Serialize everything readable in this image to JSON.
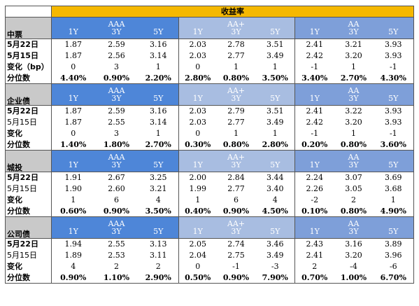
{
  "title": "收益率",
  "groups": [
    "AAA",
    "AA+",
    "AA"
  ],
  "tenors": [
    "1Y",
    "3Y",
    "5Y"
  ],
  "sections": [
    {
      "name": "中票",
      "rows": [
        {
          "label": "5月22日",
          "bold_label": true,
          "bold_values": false,
          "values": [
            "1.87",
            "2.59",
            "3.16",
            "2.03",
            "2.78",
            "3.51",
            "2.41",
            "3.21",
            "3.93"
          ]
        },
        {
          "label": "5月15日",
          "bold_label": true,
          "bold_values": false,
          "values": [
            "1.87",
            "2.56",
            "3.14",
            "2.03",
            "2.77",
            "3.49",
            "2.42",
            "3.20",
            "3.93"
          ]
        },
        {
          "label": "变化（bp）",
          "bold_label": true,
          "bold_values": false,
          "values": [
            "0",
            "3",
            "1",
            "0",
            "1",
            "1",
            "-1",
            "1",
            "-1"
          ]
        },
        {
          "label": "分位数",
          "bold_label": true,
          "bold_values": true,
          "values": [
            "4.40%",
            "0.90%",
            "2.20%",
            "2.80%",
            "0.80%",
            "3.50%",
            "3.40%",
            "2.70%",
            "4.30%"
          ]
        }
      ]
    },
    {
      "name": "企业债",
      "rows": [
        {
          "label": "5月22日",
          "bold_label": true,
          "bold_values": false,
          "values": [
            "1.87",
            "2.59",
            "3.16",
            "2.03",
            "2.79",
            "3.51",
            "2.41",
            "3.22",
            "3.93"
          ]
        },
        {
          "label": "5月15日",
          "bold_label": false,
          "bold_values": false,
          "values": [
            "1.87",
            "2.55",
            "3.14",
            "2.03",
            "2.77",
            "3.49",
            "2.42",
            "3.20",
            "3.93"
          ]
        },
        {
          "label": "变化",
          "bold_label": true,
          "bold_values": false,
          "values": [
            "0",
            "3",
            "1",
            "0",
            "1",
            "1",
            "-1",
            "1",
            "-1"
          ]
        },
        {
          "label": "分位数",
          "bold_label": true,
          "bold_values": true,
          "values": [
            "1.40%",
            "1.80%",
            "2.70%",
            "0.30%",
            "0.80%",
            "2.80%",
            "0.20%",
            "0.80%",
            "3.60%"
          ]
        }
      ]
    },
    {
      "name": "城投",
      "rows": [
        {
          "label": "5月22日",
          "bold_label": true,
          "bold_values": false,
          "values": [
            "1.91",
            "2.67",
            "3.25",
            "2.00",
            "2.84",
            "3.44",
            "2.24",
            "3.07",
            "3.69"
          ]
        },
        {
          "label": "5月15日",
          "bold_label": false,
          "bold_values": false,
          "values": [
            "1.90",
            "2.60",
            "3.21",
            "1.99",
            "2.77",
            "3.40",
            "2.26",
            "3.05",
            "3.68"
          ]
        },
        {
          "label": "变化",
          "bold_label": true,
          "bold_values": false,
          "values": [
            "1",
            "6",
            "4",
            "1",
            "6",
            "4",
            "-2",
            "2",
            "1"
          ]
        },
        {
          "label": "分位数",
          "bold_label": true,
          "bold_values": true,
          "values": [
            "0.60%",
            "0.90%",
            "3.50%",
            "0.40%",
            "0.90%",
            "4.50%",
            "0.10%",
            "0.80%",
            "4.90%"
          ]
        }
      ]
    },
    {
      "name": "公司债",
      "rows": [
        {
          "label": "5月22日",
          "bold_label": true,
          "bold_values": false,
          "values": [
            "1.94",
            "2.55",
            "3.13",
            "2.05",
            "2.74",
            "3.46",
            "2.43",
            "3.16",
            "3.89"
          ]
        },
        {
          "label": "5月15日",
          "bold_label": false,
          "bold_values": false,
          "values": [
            "1.89",
            "2.53",
            "3.11",
            "2.04",
            "2.75",
            "3.49",
            "2.41",
            "3.20",
            "3.96"
          ]
        },
        {
          "label": "变化",
          "bold_label": true,
          "bold_values": false,
          "values": [
            "4",
            "2",
            "2",
            "0",
            "-1",
            "-3",
            "2",
            "-4",
            "-6"
          ]
        },
        {
          "label": "分位数",
          "bold_label": true,
          "bold_values": true,
          "values": [
            "0.90%",
            "1.10%",
            "2.90%",
            "0.50%",
            "0.90%",
            "7.90%",
            "0.70%",
            "1.00%",
            "6.70%"
          ]
        }
      ]
    }
  ]
}
